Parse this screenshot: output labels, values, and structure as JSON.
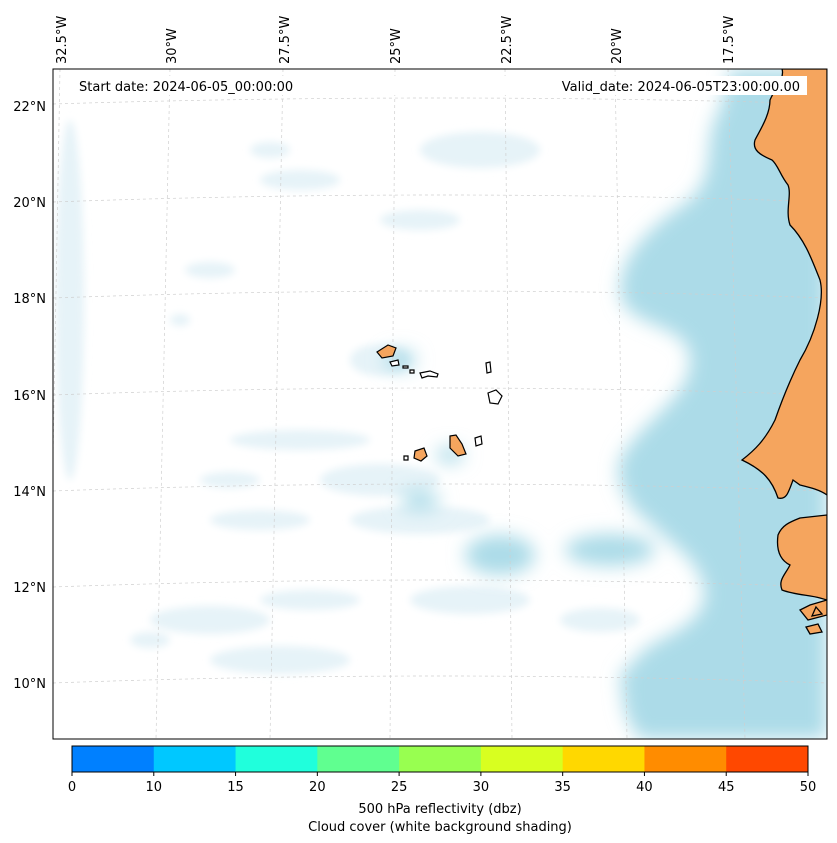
{
  "header": {
    "start_date": "Start date: 2024-06-05_00:00:00",
    "valid_date": "Valid_date: 2024-06-05T23:00:00.00"
  },
  "map": {
    "lon_labels": [
      "32.5°W",
      "30°W",
      "27.5°W",
      "25°W",
      "22.5°W",
      "20°W",
      "17.5°W"
    ],
    "lat_labels": [
      "22°N",
      "20°N",
      "18°N",
      "16°N",
      "14°N",
      "12°N",
      "10°N"
    ],
    "colors": {
      "land": "#f5a55e",
      "cloud": "#acdbe8",
      "coast": "#000000",
      "grid": "#c8c8c8"
    }
  },
  "colorbar": {
    "ticks": [
      "0",
      "10",
      "15",
      "20",
      "25",
      "30",
      "35",
      "40",
      "45",
      "50"
    ],
    "colors": [
      "#0080ff",
      "#00c8ff",
      "#20ffdc",
      "#60ff90",
      "#98ff50",
      "#d8ff20",
      "#ffd800",
      "#ff8c00",
      "#ff4800"
    ],
    "label_line1": "500 hPa reflectivity (dbz)",
    "label_line2": "Cloud cover (white background shading)"
  }
}
